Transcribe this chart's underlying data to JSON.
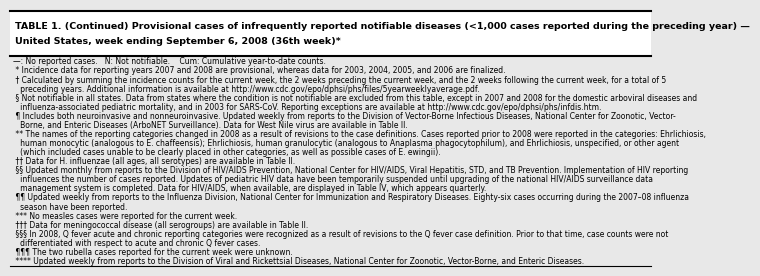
{
  "bg_color": "#e8e8e8",
  "title_line1": "TABLE 1. (Continued) Provisional cases of infrequently reported notifiable diseases (<1,000 cases reported during the preceding year) —",
  "title_line2": "United States, week ending September 6, 2008 (36th week)*",
  "separator_color": "#000000",
  "text_color": "#000000",
  "font_size": 5.5,
  "title_font_size": 6.8,
  "lines": [
    "—: No reported cases.   N: Not notifiable.    Cum: Cumulative year-to-date counts.",
    " * Incidence data for reporting years 2007 and 2008 are provisional, whereas data for 2003, 2004, 2005, and 2006 are finalized.",
    " † Calculated by summing the incidence counts for the current week, the 2 weeks preceding the current week, and the 2 weeks following the current week, for a total of 5",
    "   preceding years. Additional information is available at http://www.cdc.gov/epo/dphsi/phs/files/5yearweeklyaverage.pdf.",
    " § Not notifiable in all states. Data from states where the condition is not notifiable are excluded from this table, except in 2007 and 2008 for the domestic arboviral diseases and",
    "   influenza-associated pediatric mortality, and in 2003 for SARS-CoV. Reporting exceptions are available at http://www.cdc.gov/epo/dphsi/phs/infdis.htm.",
    " ¶ Includes both neuroinvasive and nonneuroinvasive. Updated weekly from reports to the Division of Vector-Borne Infectious Diseases, National Center for Zoonotic, Vector-",
    "   Borne, and Enteric Diseases (ArboNET Surveillance). Data for West Nile virus are available in Table II.",
    " ** The names of the reporting categories changed in 2008 as a result of revisions to the case definitions. Cases reported prior to 2008 were reported in the categories: Ehrlichiosis,",
    "   human monocytic (analogous to E. chaffeensis); Ehrlichiosis, human granulocytic (analogous to Anaplasma phagocytophilum), and Ehrlichiosis, unspecified, or other agent",
    "   (which included cases unable to be clearly placed in other categories, as well as possible cases of E. ewingii).",
    " †† Data for H. influenzae (all ages, all serotypes) are available in Table II.",
    " §§ Updated monthly from reports to the Division of HIV/AIDS Prevention, National Center for HIV/AIDS, Viral Hepatitis, STD, and TB Prevention. Implementation of HIV reporting",
    "   influences the number of cases reported. Updates of pediatric HIV data have been temporarily suspended until upgrading of the national HIV/AIDS surveillance data",
    "   management system is completed. Data for HIV/AIDS, when available, are displayed in Table IV, which appears quarterly.",
    " ¶¶ Updated weekly from reports to the Influenza Division, National Center for Immunization and Respiratory Diseases. Eighty-six cases occurring during the 2007–08 influenza",
    "   season have been reported.",
    " *** No measles cases were reported for the current week.",
    " ††† Data for meningococcal disease (all serogroups) are available in Table II.",
    " §§§ In 2008, Q fever acute and chronic reporting categories were recognized as a result of revisions to the Q fever case definition. Prior to that time, case counts were not",
    "   differentiated with respect to acute and chronic Q fever cases.",
    " ¶¶¶ The two rubella cases reported for the current week were unknown.",
    " **** Updated weekly from reports to the Division of Viral and Rickettsial Diseases, National Center for Zoonotic, Vector-Borne, and Enteric Diseases."
  ]
}
